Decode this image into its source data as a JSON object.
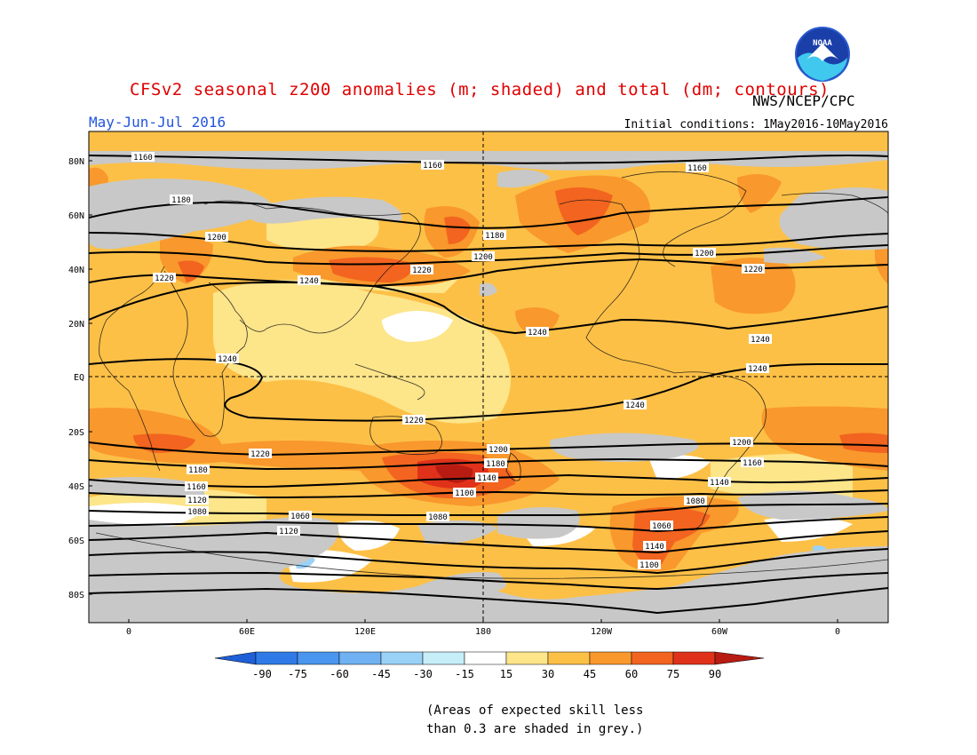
{
  "title": "CFSv2 seasonal z200 anomalies (m; shaded) and total (dm; contours)",
  "organization": "NWS/NCEP/CPC",
  "logo_text": "NOAA",
  "period": "May-Jun-Jul 2016",
  "initial_conditions": "Initial conditions: 1May2016-10May2016",
  "lat_labels": [
    "80N",
    "60N",
    "40N",
    "20N",
    "EQ",
    "20S",
    "40S",
    "60S",
    "80S"
  ],
  "lon_labels": [
    "0",
    "60E",
    "120E",
    "180",
    "120W",
    "60W",
    "0"
  ],
  "colorbar": {
    "tick_labels": [
      "-90",
      "-75",
      "-60",
      "-45",
      "-30",
      "-15",
      "15",
      "30",
      "45",
      "60",
      "75",
      "90"
    ],
    "colors": [
      "#1e5fd8",
      "#2f7ae6",
      "#4a95ee",
      "#6fb1f2",
      "#9ad2f7",
      "#c6eef9",
      "#ffffff",
      "#fde58a",
      "#fdc047",
      "#f9982c",
      "#f2641f",
      "#e0321a",
      "#b81b12"
    ]
  },
  "contour_labels": [
    "1160",
    "1160",
    "1160",
    "1180",
    "1180",
    "1200",
    "1200",
    "1200",
    "1220",
    "1220",
    "1220",
    "1240",
    "1240",
    "1240",
    "1240",
    "1240",
    "1240",
    "1220",
    "1220",
    "1200",
    "1200",
    "1180",
    "1180",
    "1160",
    "1160",
    "1140",
    "1140",
    "1120",
    "1100",
    "1080",
    "1080",
    "1080",
    "1060",
    "1060",
    "1140",
    "1120",
    "1100"
  ],
  "note_lines": [
    "(Areas of expected skill less",
    "than 0.3 are shaded in grey.)"
  ]
}
